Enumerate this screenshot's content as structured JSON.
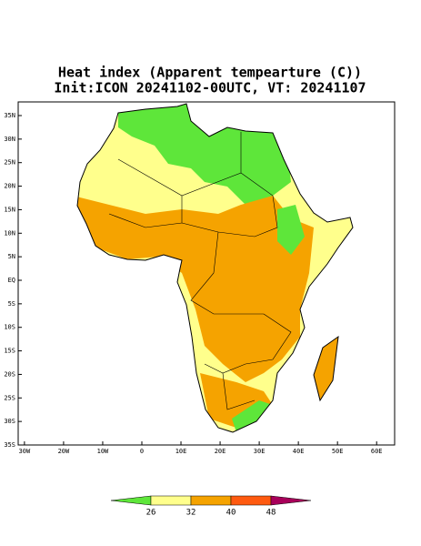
{
  "map": {
    "title": "Heat index (Apparent tempearture (C))",
    "subtitle": "Init:ICON 20241102-00UTC, VT: 20241107",
    "xlim": [
      -31.6,
      64.6
    ],
    "ylim": [
      -35,
      37.9
    ],
    "lat_ticks": [
      {
        "value": 35,
        "label": "35N"
      },
      {
        "value": 30,
        "label": "30N"
      },
      {
        "value": 25,
        "label": "25N"
      },
      {
        "value": 20,
        "label": "20N"
      },
      {
        "value": 15,
        "label": "15N"
      },
      {
        "value": 10,
        "label": "10N"
      },
      {
        "value": 5,
        "label": "5N"
      },
      {
        "value": 0,
        "label": "EQ"
      },
      {
        "value": -5,
        "label": "5S"
      },
      {
        "value": -10,
        "label": "10S"
      },
      {
        "value": -15,
        "label": "15S"
      },
      {
        "value": -20,
        "label": "20S"
      },
      {
        "value": -25,
        "label": "25S"
      },
      {
        "value": -30,
        "label": "30S"
      },
      {
        "value": -35,
        "label": "35S"
      }
    ],
    "lon_ticks": [
      {
        "value": -30,
        "label": "30W"
      },
      {
        "value": -20,
        "label": "20W"
      },
      {
        "value": -10,
        "label": "10W"
      },
      {
        "value": 0,
        "label": "0"
      },
      {
        "value": 10,
        "label": "10E"
      },
      {
        "value": 20,
        "label": "20E"
      },
      {
        "value": 30,
        "label": "30E"
      },
      {
        "value": 40,
        "label": "40E"
      },
      {
        "value": 50,
        "label": "50E"
      },
      {
        "value": 60,
        "label": "60E"
      }
    ],
    "colorbar": {
      "levels": [
        26,
        32,
        40,
        48
      ],
      "colors": [
        "#5ee63a",
        "#ffff8c",
        "#f5a300",
        "#ff5a10",
        "#a8005a"
      ]
    }
  }
}
